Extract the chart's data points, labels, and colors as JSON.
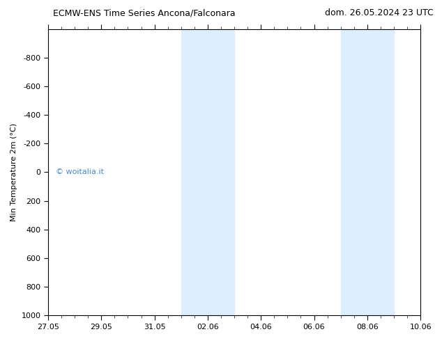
{
  "title_left": "ECMW-ENS Time Series Ancona/Falconara",
  "title_right": "dom. 26.05.2024 23 UTC",
  "ylabel": "Min Temperature 2m (°C)",
  "ylim_bottom": 1000,
  "ylim_top": -1000,
  "yticks": [
    -800,
    -600,
    -400,
    -200,
    0,
    200,
    400,
    600,
    800,
    1000
  ],
  "xtick_labels": [
    "27.05",
    "29.05",
    "31.05",
    "02.06",
    "04.06",
    "06.06",
    "08.06",
    "10.06"
  ],
  "xtick_positions": [
    0,
    2,
    4,
    6,
    8,
    10,
    12,
    14
  ],
  "x_min": 0,
  "x_max": 14,
  "shaded_regions": [
    {
      "x_start": 5,
      "x_end": 6
    },
    {
      "x_start": 6,
      "x_end": 7
    },
    {
      "x_start": 11,
      "x_end": 12
    },
    {
      "x_start": 12,
      "x_end": 13
    }
  ],
  "shaded_color": "#ddeeff",
  "shaded_line_color": "#aaccee",
  "watermark": "© woitalia.it",
  "watermark_color": "#4488cc",
  "background_color": "#ffffff",
  "plot_bg_color": "#ffffff",
  "title_fontsize": 9,
  "tick_fontsize": 8,
  "ylabel_fontsize": 8
}
